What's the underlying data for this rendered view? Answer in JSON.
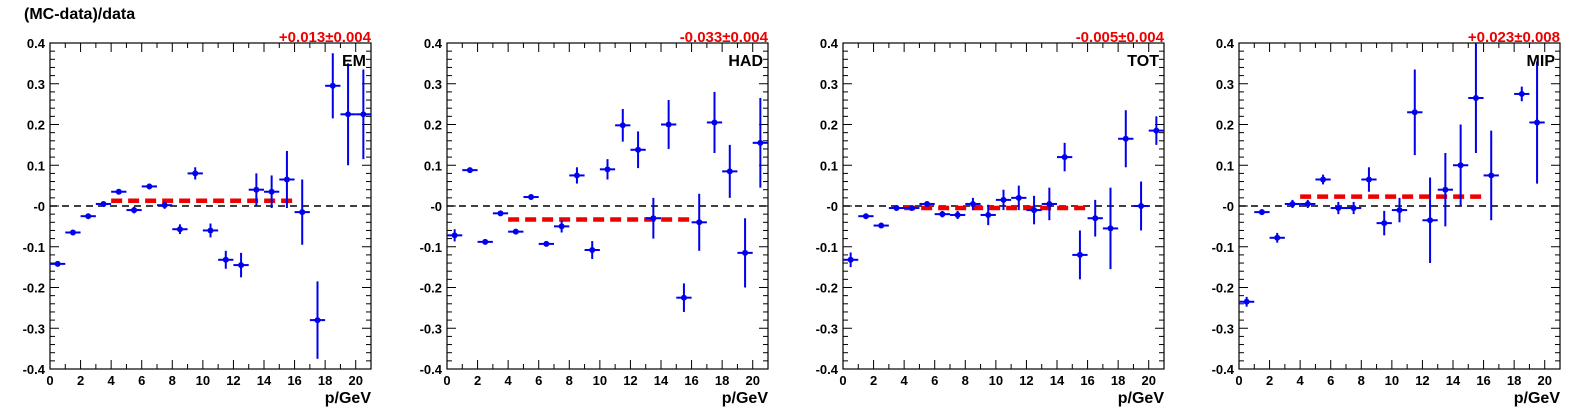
{
  "figure_title": "(MC-data)/data",
  "colors": {
    "points": "#0000ee",
    "fit": "#ee0000",
    "axis": "#000000",
    "zero_line": "#000000"
  },
  "chart_data": [
    {
      "type": "scatter",
      "panel_label": "EM",
      "fit_label": "+0.013±0.004",
      "xlabel": "p/GeV",
      "ylabel": "",
      "xlim": [
        0,
        21
      ],
      "ylim": [
        -0.4,
        0.4
      ],
      "x_ticks": [
        "0",
        "2",
        "4",
        "6",
        "8",
        "10",
        "12",
        "14",
        "16",
        "18",
        "20"
      ],
      "y_ticks": [
        "-0.4",
        "-0.3",
        "-0.2",
        "-0.1",
        "-0",
        "0.1",
        "0.2",
        "0.3",
        "0.4"
      ],
      "fit": {
        "value": 0.013,
        "x_range": [
          4,
          16
        ]
      },
      "points": [
        {
          "x": 0.5,
          "y": -0.142,
          "err": 0.006
        },
        {
          "x": 1.5,
          "y": -0.065,
          "err": 0.005
        },
        {
          "x": 2.5,
          "y": -0.025,
          "err": 0.005
        },
        {
          "x": 3.5,
          "y": 0.005,
          "err": 0.004
        },
        {
          "x": 4.5,
          "y": 0.035,
          "err": 0.006
        },
        {
          "x": 5.5,
          "y": -0.01,
          "err": 0.008
        },
        {
          "x": 6.5,
          "y": 0.048,
          "err": 0.007
        },
        {
          "x": 7.5,
          "y": 0.002,
          "err": 0.009
        },
        {
          "x": 8.5,
          "y": -0.057,
          "err": 0.012
        },
        {
          "x": 9.5,
          "y": 0.08,
          "err": 0.015
        },
        {
          "x": 10.5,
          "y": -0.06,
          "err": 0.017
        },
        {
          "x": 11.5,
          "y": -0.132,
          "err": 0.022
        },
        {
          "x": 12.5,
          "y": -0.145,
          "err": 0.03
        },
        {
          "x": 13.5,
          "y": 0.04,
          "err": 0.04
        },
        {
          "x": 14.5,
          "y": 0.035,
          "err": 0.04
        },
        {
          "x": 15.5,
          "y": 0.065,
          "err": 0.07
        },
        {
          "x": 16.5,
          "y": -0.015,
          "err": 0.08
        },
        {
          "x": 17.5,
          "y": -0.28,
          "err": 0.095
        },
        {
          "x": 18.5,
          "y": 0.295,
          "err": 0.08
        },
        {
          "x": 19.5,
          "y": 0.225,
          "err": 0.125
        },
        {
          "x": 20.5,
          "y": 0.225,
          "err": 0.11
        }
      ]
    },
    {
      "type": "scatter",
      "panel_label": "HAD",
      "fit_label": "-0.033±0.004",
      "xlabel": "p/GeV",
      "ylabel": "",
      "xlim": [
        0,
        21
      ],
      "ylim": [
        -0.4,
        0.4
      ],
      "x_ticks": [
        "0",
        "2",
        "4",
        "6",
        "8",
        "10",
        "12",
        "14",
        "16",
        "18",
        "20"
      ],
      "y_ticks": [
        "-0.4",
        "-0.3",
        "-0.2",
        "-0.1",
        "-0",
        "0.1",
        "0.2",
        "0.3",
        "0.4"
      ],
      "fit": {
        "value": -0.033,
        "x_range": [
          4,
          16
        ]
      },
      "points": [
        {
          "x": 0.5,
          "y": -0.072,
          "err": 0.015
        },
        {
          "x": 1.5,
          "y": 0.088,
          "err": 0.006
        },
        {
          "x": 2.5,
          "y": -0.088,
          "err": 0.006
        },
        {
          "x": 3.5,
          "y": -0.018,
          "err": 0.005
        },
        {
          "x": 4.5,
          "y": -0.063,
          "err": 0.006
        },
        {
          "x": 5.5,
          "y": 0.022,
          "err": 0.006
        },
        {
          "x": 6.5,
          "y": -0.093,
          "err": 0.006
        },
        {
          "x": 7.5,
          "y": -0.05,
          "err": 0.015
        },
        {
          "x": 8.5,
          "y": 0.075,
          "err": 0.02
        },
        {
          "x": 9.5,
          "y": -0.108,
          "err": 0.022
        },
        {
          "x": 10.5,
          "y": 0.09,
          "err": 0.025
        },
        {
          "x": 11.5,
          "y": 0.198,
          "err": 0.04
        },
        {
          "x": 12.5,
          "y": 0.138,
          "err": 0.045
        },
        {
          "x": 13.5,
          "y": -0.03,
          "err": 0.05
        },
        {
          "x": 14.5,
          "y": 0.2,
          "err": 0.06
        },
        {
          "x": 15.5,
          "y": -0.225,
          "err": 0.035
        },
        {
          "x": 16.5,
          "y": -0.04,
          "err": 0.07
        },
        {
          "x": 17.5,
          "y": 0.205,
          "err": 0.075
        },
        {
          "x": 18.5,
          "y": 0.085,
          "err": 0.065
        },
        {
          "x": 19.5,
          "y": -0.115,
          "err": 0.085
        },
        {
          "x": 20.5,
          "y": 0.155,
          "err": 0.11
        }
      ]
    },
    {
      "type": "scatter",
      "panel_label": "TOT",
      "fit_label": "-0.005±0.004",
      "xlabel": "p/GeV",
      "ylabel": "",
      "xlim": [
        0,
        21
      ],
      "ylim": [
        -0.4,
        0.4
      ],
      "x_ticks": [
        "0",
        "2",
        "4",
        "6",
        "8",
        "10",
        "12",
        "14",
        "16",
        "18",
        "20"
      ],
      "y_ticks": [
        "-0.4",
        "-0.3",
        "-0.2",
        "-0.1",
        "-0",
        "0.1",
        "0.2",
        "0.3",
        "0.4"
      ],
      "fit": {
        "value": -0.005,
        "x_range": [
          4,
          16
        ]
      },
      "points": [
        {
          "x": 0.5,
          "y": -0.132,
          "err": 0.018
        },
        {
          "x": 1.5,
          "y": -0.025,
          "err": 0.006
        },
        {
          "x": 2.5,
          "y": -0.048,
          "err": 0.006
        },
        {
          "x": 3.5,
          "y": -0.005,
          "err": 0.005
        },
        {
          "x": 4.5,
          "y": -0.005,
          "err": 0.006
        },
        {
          "x": 5.5,
          "y": 0.005,
          "err": 0.006
        },
        {
          "x": 6.5,
          "y": -0.02,
          "err": 0.008
        },
        {
          "x": 7.5,
          "y": -0.022,
          "err": 0.01
        },
        {
          "x": 8.5,
          "y": 0.005,
          "err": 0.015
        },
        {
          "x": 9.5,
          "y": -0.022,
          "err": 0.025
        },
        {
          "x": 10.5,
          "y": 0.015,
          "err": 0.025
        },
        {
          "x": 11.5,
          "y": 0.02,
          "err": 0.03
        },
        {
          "x": 12.5,
          "y": -0.01,
          "err": 0.035
        },
        {
          "x": 13.5,
          "y": 0.005,
          "err": 0.04
        },
        {
          "x": 14.5,
          "y": 0.12,
          "err": 0.035
        },
        {
          "x": 15.5,
          "y": -0.12,
          "err": 0.06
        },
        {
          "x": 16.5,
          "y": -0.03,
          "err": 0.045
        },
        {
          "x": 17.5,
          "y": -0.055,
          "err": 0.1
        },
        {
          "x": 18.5,
          "y": 0.165,
          "err": 0.07
        },
        {
          "x": 19.5,
          "y": 0.0,
          "err": 0.06
        },
        {
          "x": 20.5,
          "y": 0.185,
          "err": 0.035
        }
      ]
    },
    {
      "type": "scatter",
      "panel_label": "MIP",
      "fit_label": "+0.023±0.008",
      "xlabel": "p/GeV",
      "ylabel": "",
      "xlim": [
        0,
        21
      ],
      "ylim": [
        -0.4,
        0.4
      ],
      "x_ticks": [
        "0",
        "2",
        "4",
        "6",
        "8",
        "10",
        "12",
        "14",
        "16",
        "18",
        "20"
      ],
      "y_ticks": [
        "-0.4",
        "-0.3",
        "-0.2",
        "-0.1",
        "-0",
        "0.1",
        "0.2",
        "0.3",
        "0.4"
      ],
      "fit": {
        "value": 0.023,
        "x_range": [
          4,
          16
        ]
      },
      "points": [
        {
          "x": 0.5,
          "y": -0.235,
          "err": 0.012
        },
        {
          "x": 1.5,
          "y": -0.015,
          "err": 0.007
        },
        {
          "x": 2.5,
          "y": -0.078,
          "err": 0.012
        },
        {
          "x": 3.5,
          "y": 0.005,
          "err": 0.01
        },
        {
          "x": 4.5,
          "y": 0.005,
          "err": 0.01
        },
        {
          "x": 5.5,
          "y": 0.065,
          "err": 0.012
        },
        {
          "x": 6.5,
          "y": -0.005,
          "err": 0.015
        },
        {
          "x": 7.5,
          "y": -0.005,
          "err": 0.015
        },
        {
          "x": 8.5,
          "y": 0.065,
          "err": 0.03
        },
        {
          "x": 9.5,
          "y": -0.042,
          "err": 0.03
        },
        {
          "x": 10.5,
          "y": -0.01,
          "err": 0.03
        },
        {
          "x": 11.5,
          "y": 0.23,
          "err": 0.105
        },
        {
          "x": 12.5,
          "y": -0.035,
          "err": 0.105
        },
        {
          "x": 13.5,
          "y": 0.04,
          "err": 0.09
        },
        {
          "x": 14.5,
          "y": 0.1,
          "err": 0.1
        },
        {
          "x": 15.5,
          "y": 0.265,
          "err": 0.135
        },
        {
          "x": 16.5,
          "y": 0.075,
          "err": 0.11
        },
        {
          "x": 18.5,
          "y": 0.275,
          "err": 0.018
        },
        {
          "x": 19.5,
          "y": 0.205,
          "err": 0.15
        }
      ]
    }
  ]
}
